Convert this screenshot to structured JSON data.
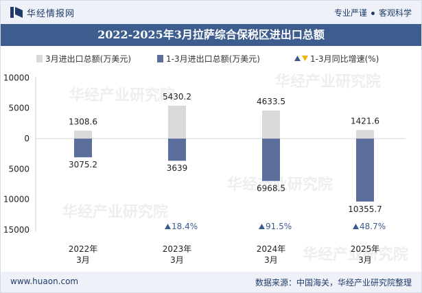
{
  "header": {
    "brand": "华经情报网",
    "tagline_left": "专业严谨",
    "tagline_right": "客观科学"
  },
  "title": "2022-2025年3月拉萨综合保税区进出口总额",
  "legend": {
    "series1": "3月进出口总额(万美元)",
    "series2": "1-3月进出口总额(万美元)",
    "series3": "1-3月同比增速(%)"
  },
  "colors": {
    "series1": "#d9d9d9",
    "series2": "#5c6f9c",
    "up": "#3d5a8c",
    "down": "#f0b400",
    "header_bg": "#eef2f8",
    "title_bg": "#3e5d8f"
  },
  "chart_data": {
    "type": "bar",
    "categories": [
      "2022年\n3月",
      "2023年\n3月",
      "2024年\n3月",
      "2025年\n3月"
    ],
    "y_tick_labels": [
      "10000",
      "5000",
      "0",
      "5000",
      "10000",
      "15000"
    ],
    "y_tick_values": [
      10000,
      5000,
      0,
      -5000,
      -10000,
      -15000
    ],
    "ylim": [
      -15000,
      10000
    ],
    "series": [
      {
        "name": "3月进出口总额(万美元)",
        "values": [
          1308.6,
          5430.2,
          4633.5,
          1421.6
        ],
        "labels": [
          "1308.6",
          "5430.2",
          "4633.5",
          "1421.6"
        ]
      },
      {
        "name": "1-3月进出口总额(万美元)",
        "values": [
          3075.2,
          3639,
          6968.5,
          10355.7
        ],
        "labels": [
          "3075.2",
          "3639",
          "6968.5",
          "10355.7"
        ],
        "direction": "down"
      },
      {
        "name": "1-3月同比增速(%)",
        "values": [
          null,
          18.4,
          91.5,
          48.7
        ],
        "labels": [
          "",
          "18.4%",
          "91.5%",
          "48.7%"
        ]
      }
    ]
  },
  "watermark": {
    "text": "华经产业研究院",
    "url": "www.huaon.com"
  },
  "footer": {
    "url": "www.huaon.com",
    "source": "数据来源：中国海关，华经产业研究院整理"
  }
}
